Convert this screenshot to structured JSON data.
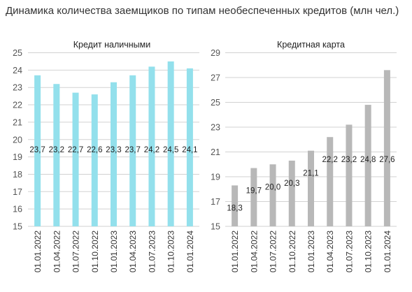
{
  "title": "Динамика количества заемщиков по типам необеспеченных кредитов (млн чел.)",
  "colors": {
    "left": "#93e0ec",
    "right": "#b8b8b8",
    "grid": "#d2d2d2",
    "text": "#222222"
  },
  "chart_data": [
    {
      "type": "bar",
      "title": "Кредит наличными",
      "xlabel": "",
      "ylabel": "",
      "ylim": [
        15,
        25
      ],
      "yticks": [
        15,
        16,
        17,
        18,
        19,
        20,
        21,
        22,
        23,
        24,
        25
      ],
      "grid": true,
      "categories": [
        "01.01.2022",
        "01.04.2022",
        "01.07.2022",
        "01.10.2022",
        "01.01.2023",
        "01.04.2023",
        "01.07.2023",
        "01.10.2023",
        "01.01.2024"
      ],
      "values": [
        23.7,
        23.2,
        22.7,
        22.6,
        23.3,
        23.7,
        24.2,
        24.5,
        24.1
      ],
      "labels": [
        "23,7",
        "23,2",
        "22,7",
        "22,6",
        "23,3",
        "23,7",
        "24,2",
        "24,5",
        "24,1"
      ]
    },
    {
      "type": "bar",
      "title": "Кредитная карта",
      "xlabel": "",
      "ylabel": "",
      "ylim": [
        15,
        29
      ],
      "yticks": [
        15,
        17,
        19,
        21,
        23,
        25,
        27,
        29
      ],
      "grid": true,
      "categories": [
        "01.01.2022",
        "01.04.2022",
        "01.07.2022",
        "01.10.2022",
        "01.01.2023",
        "01.04.2023",
        "01.07.2023",
        "01.10.2023",
        "01.01.2024"
      ],
      "values": [
        18.3,
        19.7,
        20.0,
        20.3,
        21.1,
        22.2,
        23.2,
        24.8,
        27.6
      ],
      "labels": [
        "18,3",
        "19,7",
        "20,0",
        "20,3",
        "21,1",
        "22,2",
        "23,2",
        "24,8",
        "27,6"
      ]
    }
  ]
}
